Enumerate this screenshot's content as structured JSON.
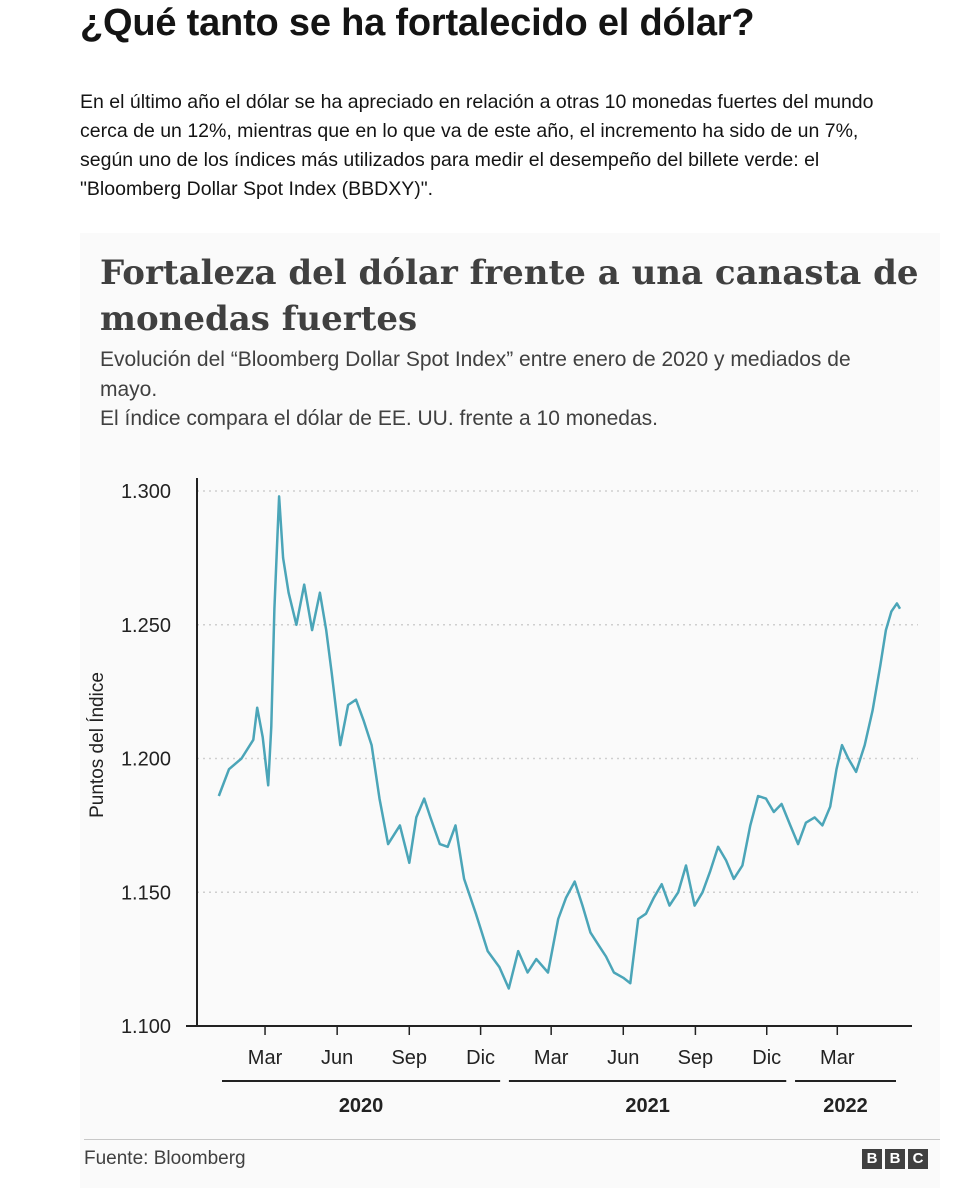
{
  "article": {
    "headline": "¿Qué tanto se ha fortalecido el dólar?",
    "intro": "En el último año el dólar se ha apreciado en relación a otras 10 monedas fuertes del mundo cerca de un 12%, mientras que en lo que va de este año, el incremento ha sido de un 7%, según uno de los índices más utilizados para medir el desempeño del billete verde: el \"Bloomberg Dollar Spot Index (BBDXY)\"."
  },
  "chart_data": {
    "type": "line",
    "title": "Fortaleza del dólar frente a una canasta de monedas fuertes",
    "subtitle": "Evolución del “Bloomberg Dollar Spot Index” entre enero de 2020 y mediados de mayo.",
    "note": "El índice compara el dólar de EE. UU. frente a 10 monedas.",
    "ylabel": "Puntos del Índice",
    "xlabel": "",
    "ylim": [
      1.1,
      1.3
    ],
    "yticks": [
      "1.300",
      "1.250",
      "1.200",
      "1.150",
      "1.100"
    ],
    "ytick_values": [
      1.3,
      1.25,
      1.2,
      1.15,
      1.1
    ],
    "x_domain": [
      "2020-01-01",
      "2022-05-20"
    ],
    "xticks": [
      {
        "label": "Mar",
        "date": "2020-03-01"
      },
      {
        "label": "Jun",
        "date": "2020-06-01"
      },
      {
        "label": "Sep",
        "date": "2020-09-01"
      },
      {
        "label": "Dic",
        "date": "2020-12-01"
      },
      {
        "label": "Mar",
        "date": "2021-03-01"
      },
      {
        "label": "Jun",
        "date": "2021-06-01"
      },
      {
        "label": "Sep",
        "date": "2021-09-01"
      },
      {
        "label": "Dic",
        "date": "2021-12-01"
      },
      {
        "label": "Mar",
        "date": "2022-03-01"
      }
    ],
    "years": [
      {
        "label": "2020",
        "start": "2020-01-01",
        "end": "2020-12-31"
      },
      {
        "label": "2021",
        "start": "2021-01-01",
        "end": "2021-12-31"
      },
      {
        "label": "2022",
        "start": "2022-01-01",
        "end": "2022-05-20"
      }
    ],
    "grid": "horizontal dotted",
    "legend": "none",
    "series": [
      {
        "color": "#4ba5b8",
        "points": [
          [
            "2020-01-02",
            1.186
          ],
          [
            "2020-01-15",
            1.196
          ],
          [
            "2020-01-31",
            1.2
          ],
          [
            "2020-02-15",
            1.207
          ],
          [
            "2020-02-20",
            1.219
          ],
          [
            "2020-02-27",
            1.208
          ],
          [
            "2020-03-05",
            1.19
          ],
          [
            "2020-03-09",
            1.212
          ],
          [
            "2020-03-13",
            1.256
          ],
          [
            "2020-03-19",
            1.298
          ],
          [
            "2020-03-24",
            1.275
          ],
          [
            "2020-03-31",
            1.262
          ],
          [
            "2020-04-10",
            1.25
          ],
          [
            "2020-04-20",
            1.265
          ],
          [
            "2020-04-30",
            1.248
          ],
          [
            "2020-05-10",
            1.262
          ],
          [
            "2020-05-18",
            1.248
          ],
          [
            "2020-05-25",
            1.232
          ],
          [
            "2020-06-05",
            1.205
          ],
          [
            "2020-06-15",
            1.22
          ],
          [
            "2020-06-25",
            1.222
          ],
          [
            "2020-07-05",
            1.214
          ],
          [
            "2020-07-15",
            1.205
          ],
          [
            "2020-07-25",
            1.185
          ],
          [
            "2020-08-05",
            1.168
          ],
          [
            "2020-08-20",
            1.175
          ],
          [
            "2020-09-01",
            1.161
          ],
          [
            "2020-09-10",
            1.178
          ],
          [
            "2020-09-20",
            1.185
          ],
          [
            "2020-09-28",
            1.178
          ],
          [
            "2020-10-10",
            1.168
          ],
          [
            "2020-10-20",
            1.167
          ],
          [
            "2020-10-30",
            1.175
          ],
          [
            "2020-11-10",
            1.155
          ],
          [
            "2020-11-25",
            1.142
          ],
          [
            "2020-12-10",
            1.128
          ],
          [
            "2020-12-25",
            1.122
          ],
          [
            "2021-01-06",
            1.114
          ],
          [
            "2021-01-18",
            1.128
          ],
          [
            "2021-01-30",
            1.12
          ],
          [
            "2021-02-10",
            1.125
          ],
          [
            "2021-02-25",
            1.12
          ],
          [
            "2021-03-10",
            1.14
          ],
          [
            "2021-03-20",
            1.148
          ],
          [
            "2021-03-31",
            1.154
          ],
          [
            "2021-04-10",
            1.145
          ],
          [
            "2021-04-20",
            1.135
          ],
          [
            "2021-05-01",
            1.13
          ],
          [
            "2021-05-10",
            1.126
          ],
          [
            "2021-05-20",
            1.12
          ],
          [
            "2021-06-01",
            1.118
          ],
          [
            "2021-06-10",
            1.116
          ],
          [
            "2021-06-20",
            1.14
          ],
          [
            "2021-06-30",
            1.142
          ],
          [
            "2021-07-10",
            1.148
          ],
          [
            "2021-07-20",
            1.153
          ],
          [
            "2021-07-30",
            1.145
          ],
          [
            "2021-08-10",
            1.15
          ],
          [
            "2021-08-20",
            1.16
          ],
          [
            "2021-08-31",
            1.145
          ],
          [
            "2021-09-10",
            1.15
          ],
          [
            "2021-09-20",
            1.158
          ],
          [
            "2021-09-30",
            1.167
          ],
          [
            "2021-10-10",
            1.162
          ],
          [
            "2021-10-20",
            1.155
          ],
          [
            "2021-10-31",
            1.16
          ],
          [
            "2021-11-10",
            1.175
          ],
          [
            "2021-11-20",
            1.186
          ],
          [
            "2021-11-30",
            1.185
          ],
          [
            "2021-12-10",
            1.18
          ],
          [
            "2021-12-20",
            1.183
          ],
          [
            "2021-12-31",
            1.175
          ],
          [
            "2022-01-10",
            1.168
          ],
          [
            "2022-01-20",
            1.176
          ],
          [
            "2022-01-31",
            1.178
          ],
          [
            "2022-02-10",
            1.175
          ],
          [
            "2022-02-20",
            1.182
          ],
          [
            "2022-02-28",
            1.196
          ],
          [
            "2022-03-07",
            1.205
          ],
          [
            "2022-03-15",
            1.2
          ],
          [
            "2022-03-25",
            1.195
          ],
          [
            "2022-04-05",
            1.205
          ],
          [
            "2022-04-15",
            1.218
          ],
          [
            "2022-04-25",
            1.235
          ],
          [
            "2022-05-02",
            1.248
          ],
          [
            "2022-05-09",
            1.255
          ],
          [
            "2022-05-16",
            1.258
          ],
          [
            "2022-05-20",
            1.256
          ]
        ]
      }
    ]
  },
  "footer": {
    "source": "Fuente: Bloomberg",
    "brand_letters": [
      "B",
      "B",
      "C"
    ]
  }
}
